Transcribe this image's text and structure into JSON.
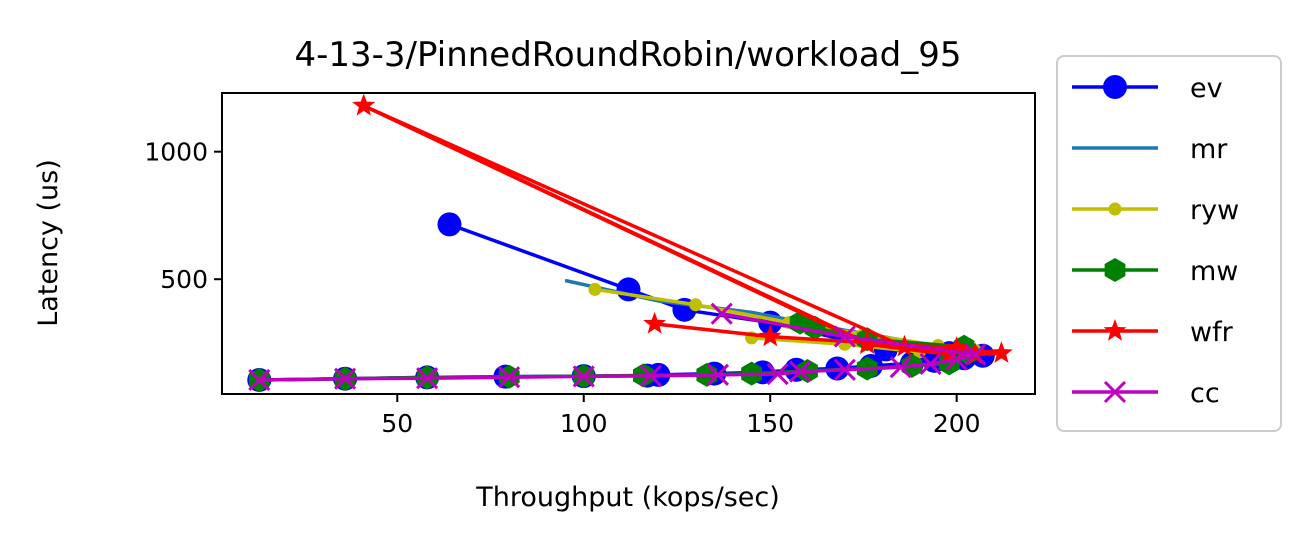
{
  "chart_data": {
    "type": "line",
    "title": "4-13-3/PinnedRoundRobin/workload_95",
    "xlabel": "Throughput (kops/sec)",
    "ylabel": "Latency (us)",
    "xlim": [
      3,
      221
    ],
    "ylim": [
      50,
      1230
    ],
    "xticks": [
      50,
      100,
      150,
      200
    ],
    "yticks": [
      500,
      1000
    ],
    "grid": false,
    "legend_position": "outside-right",
    "series": [
      {
        "name": "ev",
        "color": "#0000ff",
        "marker": "circle",
        "points": [
          [
            13,
            105
          ],
          [
            36,
            110
          ],
          [
            58,
            115
          ],
          [
            79,
            118
          ],
          [
            100,
            120
          ],
          [
            117,
            122
          ],
          [
            120,
            125
          ],
          [
            135,
            130
          ],
          [
            148,
            135
          ],
          [
            157,
            145
          ],
          [
            168,
            150
          ],
          [
            177,
            160
          ],
          [
            188,
            170
          ],
          [
            194,
            180
          ],
          [
            202,
            190
          ],
          [
            207,
            200
          ],
          [
            198,
            210
          ],
          [
            181,
            225
          ],
          [
            150,
            330
          ],
          [
            127,
            380
          ],
          [
            112,
            460
          ],
          [
            64,
            715
          ]
        ]
      },
      {
        "name": "mr",
        "color": "#1f77b4",
        "marker": "none",
        "points": [
          [
            95,
            495
          ],
          [
            120,
            415
          ],
          [
            145,
            370
          ],
          [
            170,
            300
          ],
          [
            190,
            250
          ],
          [
            205,
            215
          ]
        ]
      },
      {
        "name": "ryw",
        "color": "#bfbf00",
        "marker": "dot",
        "points": [
          [
            103,
            460
          ],
          [
            130,
            400
          ],
          [
            155,
            330
          ],
          [
            175,
            285
          ],
          [
            195,
            240
          ],
          [
            205,
            220
          ],
          [
            145,
            270
          ],
          [
            170,
            245
          ],
          [
            190,
            215
          ]
        ]
      },
      {
        "name": "mw",
        "color": "#008000",
        "marker": "hexagon",
        "points": [
          [
            13,
            105
          ],
          [
            36,
            110
          ],
          [
            58,
            115
          ],
          [
            80,
            118
          ],
          [
            100,
            120
          ],
          [
            116,
            123
          ],
          [
            133,
            125
          ],
          [
            145,
            130
          ],
          [
            160,
            140
          ],
          [
            176,
            150
          ],
          [
            188,
            160
          ],
          [
            198,
            170
          ],
          [
            203,
            210
          ],
          [
            202,
            235
          ],
          [
            176,
            265
          ],
          [
            162,
            310
          ],
          [
            158,
            330
          ]
        ]
      },
      {
        "name": "wfr",
        "color": "#ff0000",
        "marker": "star",
        "points": [
          [
            41,
            1180
          ],
          [
            176,
            250
          ],
          [
            198,
            205
          ],
          [
            176,
            245
          ],
          [
            41,
            1180
          ],
          [
            186,
            235
          ],
          [
            205,
            205
          ],
          [
            212,
            210
          ],
          [
            200,
            230
          ],
          [
            150,
            275
          ],
          [
            119,
            325
          ]
        ]
      },
      {
        "name": "cc",
        "color": "#bf00bf",
        "marker": "x",
        "points": [
          [
            13,
            105
          ],
          [
            36,
            110
          ],
          [
            58,
            112
          ],
          [
            80,
            116
          ],
          [
            100,
            119
          ],
          [
            118,
            121
          ],
          [
            136,
            125
          ],
          [
            152,
            128
          ],
          [
            158,
            138
          ],
          [
            170,
            145
          ],
          [
            185,
            155
          ],
          [
            193,
            168
          ],
          [
            200,
            185
          ],
          [
            205,
            205
          ],
          [
            170,
            275
          ],
          [
            137,
            365
          ]
        ]
      }
    ]
  }
}
